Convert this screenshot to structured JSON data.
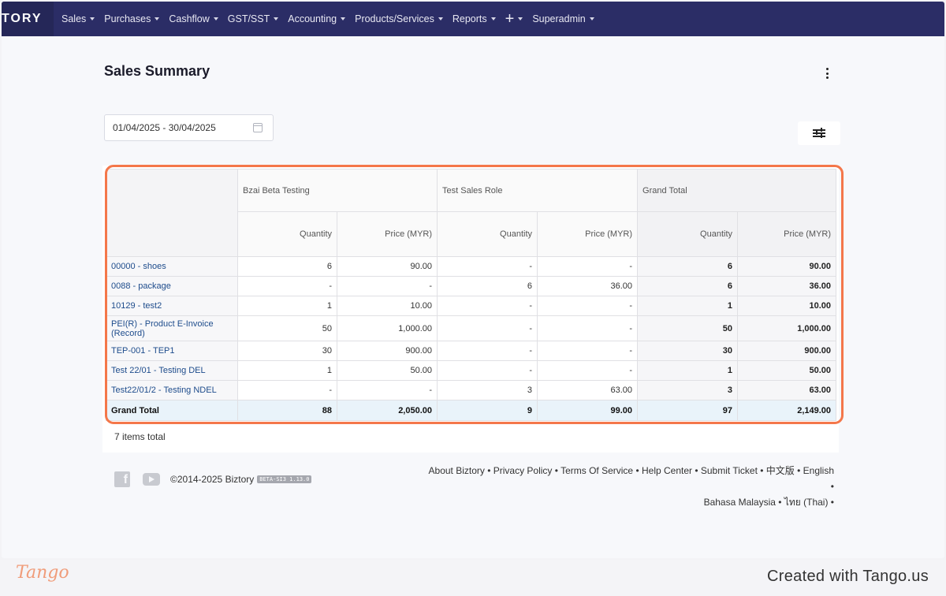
{
  "navbar": {
    "brand": "TORY",
    "items": [
      {
        "label": "Sales",
        "has_caret": true
      },
      {
        "label": "Purchases",
        "has_caret": true
      },
      {
        "label": "Cashflow",
        "has_caret": true
      },
      {
        "label": "GST/SST",
        "has_caret": true
      },
      {
        "label": "Accounting",
        "has_caret": true
      },
      {
        "label": "Products/Services",
        "has_caret": true
      },
      {
        "label": "Reports",
        "has_caret": true
      },
      {
        "label": "+",
        "has_caret": true
      },
      {
        "label": "Superadmin",
        "has_caret": true
      }
    ]
  },
  "page": {
    "title": "Sales Summary",
    "date_range": "01/04/2025 - 30/04/2025",
    "items_total": "7 items total"
  },
  "table": {
    "groups": [
      "Bzai Beta Testing",
      "Test Sales Role",
      "Grand Total"
    ],
    "sub_headers": [
      "Quantity",
      "Price (MYR)"
    ],
    "rows": [
      {
        "label": "00000 - shoes",
        "values": [
          "6",
          "90.00",
          "-",
          "-",
          "6",
          "90.00"
        ]
      },
      {
        "label": "0088 - package",
        "values": [
          "-",
          "-",
          "6",
          "36.00",
          "6",
          "36.00"
        ]
      },
      {
        "label": "10129 - test2",
        "values": [
          "1",
          "10.00",
          "-",
          "-",
          "1",
          "10.00"
        ]
      },
      {
        "label": "PEI(R) - Product E-Invoice (Record)",
        "values": [
          "50",
          "1,000.00",
          "-",
          "-",
          "50",
          "1,000.00"
        ]
      },
      {
        "label": "TEP-001 - TEP1",
        "values": [
          "30",
          "900.00",
          "-",
          "-",
          "30",
          "900.00"
        ]
      },
      {
        "label": "Test 22/01 - Testing DEL",
        "values": [
          "1",
          "50.00",
          "-",
          "-",
          "1",
          "50.00"
        ]
      },
      {
        "label": "Test22/01/2 - Testing NDEL",
        "values": [
          "-",
          "-",
          "3",
          "63.00",
          "3",
          "63.00"
        ]
      }
    ],
    "total": {
      "label": "Grand Total",
      "values": [
        "88",
        "2,050.00",
        "9",
        "99.00",
        "97",
        "2,149.00"
      ]
    }
  },
  "footer": {
    "copyright": "©2014-2025 Biztory",
    "version_badge": "BETA-SI3 1.13.0",
    "links_line1": "About Biztory • Privacy Policy • Terms Of Service • Help Center • Submit Ticket • 中文版 • English •",
    "links_line2": "Bahasa Malaysia • ไทย (Thai) •",
    "icons": [
      "facebook-icon",
      "youtube-icon"
    ]
  },
  "tango": {
    "logo": "Tango",
    "credit": "Created with Tango.us"
  },
  "colors": {
    "navbar": "#2b2d66",
    "highlight": "#f4774a",
    "link": "#1e4c8c",
    "total_row": "#e9f3fa"
  }
}
